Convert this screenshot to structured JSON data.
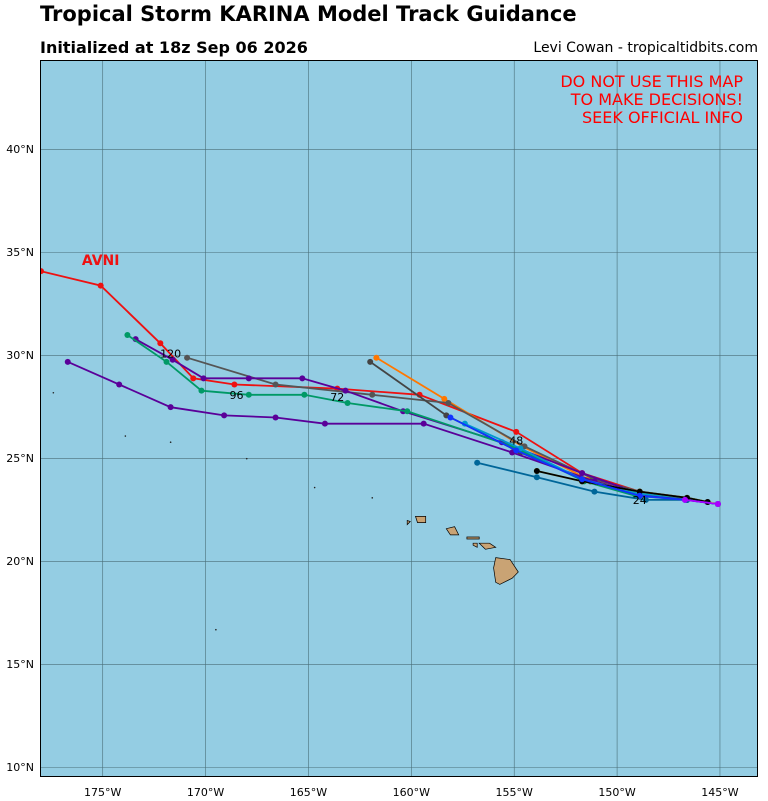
{
  "title": "Tropical Storm KARINA Model Track Guidance",
  "subtitle": "Initialized at 18z Sep 06 2026",
  "credit": "Levi Cowan - tropicaltidbits.com",
  "warning": [
    "DO NOT USE THIS MAP",
    "TO MAKE DECISIONS!",
    "SEEK OFFICIAL INFO"
  ],
  "map": {
    "ocean_color": "#94cde3",
    "land_color": "#c9a374",
    "grid_color": "#4a6e78",
    "lon_range": [
      -178,
      -143.2
    ],
    "lat_range": [
      9.6,
      44.3
    ],
    "lat_ticks": [
      {
        "value": 10,
        "label": "10°N"
      },
      {
        "value": 15,
        "label": "15°N"
      },
      {
        "value": 20,
        "label": "20°N"
      },
      {
        "value": 25,
        "label": "25°N"
      },
      {
        "value": 30,
        "label": "30°N"
      },
      {
        "value": 35,
        "label": "35°N"
      },
      {
        "value": 40,
        "label": "40°N"
      }
    ],
    "lon_ticks": [
      {
        "value": -175,
        "label": "175°W"
      },
      {
        "value": -170,
        "label": "170°W"
      },
      {
        "value": -165,
        "label": "165°W"
      },
      {
        "value": -160,
        "label": "160°W"
      },
      {
        "value": -155,
        "label": "155°W"
      },
      {
        "value": -150,
        "label": "150°W"
      },
      {
        "value": -145,
        "label": "145°W"
      }
    ],
    "hour_labels": [
      {
        "text": "24",
        "lon": -148.9,
        "lat": 22.8
      },
      {
        "text": "48",
        "lon": -154.9,
        "lat": 25.7
      },
      {
        "text": "72",
        "lon": -163.6,
        "lat": 27.8
      },
      {
        "text": "96",
        "lon": -168.5,
        "lat": 27.9
      },
      {
        "text": "120",
        "lon": -171.7,
        "lat": 29.9
      }
    ],
    "model_label": {
      "text": "AVNI",
      "lon": -175.1,
      "lat": 34.0,
      "color": "#ee1111"
    },
    "islands": [
      {
        "name": "Hawaii",
        "points": [
          [
            -155.9,
            20.2
          ],
          [
            -155.2,
            20.1
          ],
          [
            -154.8,
            19.5
          ],
          [
            -155.1,
            19.2
          ],
          [
            -155.7,
            18.9
          ],
          [
            -155.9,
            19.0
          ],
          [
            -156.0,
            19.7
          ]
        ]
      },
      {
        "name": "Maui",
        "points": [
          [
            -156.7,
            20.9
          ],
          [
            -156.2,
            20.9
          ],
          [
            -155.9,
            20.7
          ],
          [
            -156.4,
            20.6
          ],
          [
            -156.6,
            20.8
          ]
        ]
      },
      {
        "name": "Molokai",
        "points": [
          [
            -157.3,
            21.2
          ],
          [
            -156.7,
            21.2
          ],
          [
            -156.7,
            21.1
          ],
          [
            -157.3,
            21.1
          ]
        ]
      },
      {
        "name": "Lanai",
        "points": [
          [
            -157.0,
            20.9
          ],
          [
            -156.8,
            20.9
          ],
          [
            -156.8,
            20.7
          ],
          [
            -157.0,
            20.8
          ]
        ]
      },
      {
        "name": "Oahu",
        "points": [
          [
            -158.3,
            21.6
          ],
          [
            -157.9,
            21.7
          ],
          [
            -157.7,
            21.3
          ],
          [
            -158.1,
            21.3
          ]
        ]
      },
      {
        "name": "Kauai",
        "points": [
          [
            -159.8,
            22.2
          ],
          [
            -159.3,
            22.2
          ],
          [
            -159.3,
            21.9
          ],
          [
            -159.7,
            21.9
          ]
        ]
      },
      {
        "name": "Niihau",
        "points": [
          [
            -160.2,
            22.0
          ],
          [
            -160.05,
            21.95
          ],
          [
            -160.2,
            21.8
          ]
        ]
      }
    ],
    "specks": [
      [
        -177.4,
        28.2
      ],
      [
        -173.9,
        26.1
      ],
      [
        -171.7,
        25.8
      ],
      [
        -168.0,
        25.0
      ],
      [
        -164.7,
        23.6
      ],
      [
        -161.9,
        23.1
      ],
      [
        -169.5,
        16.7
      ]
    ]
  },
  "chart_data": {
    "type": "scatter",
    "tracks": [
      {
        "color": "#ee1111",
        "points": [
          [
            -145.1,
            22.8
          ],
          [
            -146.6,
            23.1
          ],
          [
            -148.9,
            23.4
          ],
          [
            -151.7,
            24.3
          ],
          [
            -154.9,
            26.3
          ],
          [
            -159.6,
            28.1
          ],
          [
            -163.6,
            28.4
          ],
          [
            -168.6,
            28.6
          ],
          [
            -170.6,
            28.9
          ],
          [
            -172.2,
            30.6
          ],
          [
            -175.1,
            33.4
          ],
          [
            -178.0,
            34.1
          ]
        ]
      },
      {
        "color": "#ff7700",
        "points": [
          [
            -145.1,
            22.8
          ],
          [
            -146.6,
            23.1
          ],
          [
            -148.9,
            23.3
          ],
          [
            -151.4,
            24.0
          ],
          [
            -154.6,
            25.6
          ],
          [
            -158.4,
            27.9
          ],
          [
            -161.7,
            29.9
          ]
        ]
      },
      {
        "color": "#555555",
        "points": [
          [
            -145.6,
            22.9
          ],
          [
            -146.6,
            23.1
          ],
          [
            -148.9,
            23.4
          ],
          [
            -151.1,
            24.0
          ],
          [
            -154.5,
            25.6
          ],
          [
            -158.2,
            27.7
          ],
          [
            -161.9,
            28.1
          ],
          [
            -166.6,
            28.6
          ],
          [
            -170.9,
            29.9
          ]
        ]
      },
      {
        "color": "#444444",
        "points": [
          [
            -145.1,
            22.8
          ],
          [
            -146.6,
            23.0
          ],
          [
            -149.0,
            23.3
          ],
          [
            -151.3,
            23.9
          ],
          [
            -154.7,
            25.3
          ],
          [
            -158.3,
            27.1
          ],
          [
            -162.0,
            29.7
          ]
        ]
      },
      {
        "color": "#5a0099",
        "points": [
          [
            -145.1,
            22.8
          ],
          [
            -146.6,
            23.0
          ],
          [
            -148.9,
            23.3
          ],
          [
            -151.1,
            23.9
          ],
          [
            -155.1,
            25.3
          ],
          [
            -159.4,
            26.7
          ],
          [
            -164.2,
            26.7
          ],
          [
            -166.6,
            27.0
          ],
          [
            -169.1,
            27.1
          ],
          [
            -171.7,
            27.5
          ],
          [
            -174.2,
            28.6
          ],
          [
            -176.7,
            29.7
          ]
        ]
      },
      {
        "color": "#5a0099",
        "points": [
          [
            -145.1,
            22.8
          ],
          [
            -146.6,
            23.0
          ],
          [
            -148.9,
            23.3
          ],
          [
            -151.7,
            24.3
          ],
          [
            -155.6,
            25.8
          ],
          [
            -160.4,
            27.3
          ],
          [
            -163.2,
            28.3
          ],
          [
            -165.3,
            28.9
          ],
          [
            -167.9,
            28.9
          ],
          [
            -170.1,
            28.9
          ],
          [
            -171.6,
            29.8
          ],
          [
            -173.4,
            30.8
          ]
        ]
      },
      {
        "color": "#009966",
        "points": [
          [
            -145.1,
            22.8
          ],
          [
            -146.6,
            23.0
          ],
          [
            -149.1,
            23.2
          ],
          [
            -151.6,
            23.9
          ],
          [
            -155.1,
            25.6
          ],
          [
            -160.2,
            27.3
          ],
          [
            -163.1,
            27.7
          ],
          [
            -165.2,
            28.1
          ],
          [
            -167.9,
            28.1
          ],
          [
            -170.2,
            28.3
          ],
          [
            -171.9,
            29.7
          ],
          [
            -173.8,
            31.0
          ]
        ]
      },
      {
        "color": "#006699",
        "points": [
          [
            -145.1,
            22.8
          ],
          [
            -146.6,
            23.0
          ],
          [
            -148.6,
            23.0
          ],
          [
            -151.1,
            23.4
          ],
          [
            -153.9,
            24.1
          ],
          [
            -156.8,
            24.8
          ]
        ]
      },
      {
        "color": "#0099cc",
        "points": [
          [
            -145.1,
            22.8
          ],
          [
            -146.6,
            23.1
          ],
          [
            -148.9,
            23.3
          ],
          [
            -151.7,
            24.0
          ],
          [
            -154.7,
            25.5
          ],
          [
            -157.4,
            26.7
          ]
        ]
      },
      {
        "color": "#ffff33",
        "points": [
          [
            -145.1,
            22.8
          ],
          [
            -146.6,
            23.1
          ],
          [
            -148.9,
            23.4
          ],
          [
            -151.7,
            23.9
          ],
          [
            -153.9,
            24.4
          ]
        ]
      },
      {
        "color": "#000000",
        "points": [
          [
            -145.6,
            22.9
          ],
          [
            -146.6,
            23.1
          ],
          [
            -148.9,
            23.4
          ],
          [
            -151.7,
            23.9
          ],
          [
            -153.9,
            24.4
          ]
        ]
      },
      {
        "color": "#1133ff",
        "points": [
          [
            -145.1,
            22.8
          ],
          [
            -146.7,
            23.0
          ],
          [
            -148.9,
            23.2
          ],
          [
            -151.7,
            24.0
          ],
          [
            -154.9,
            25.4
          ],
          [
            -158.1,
            27.0
          ]
        ]
      },
      {
        "color": "#aa00ff",
        "points": [
          [
            -145.1,
            22.8
          ],
          [
            -146.7,
            23.0
          ]
        ]
      }
    ]
  }
}
